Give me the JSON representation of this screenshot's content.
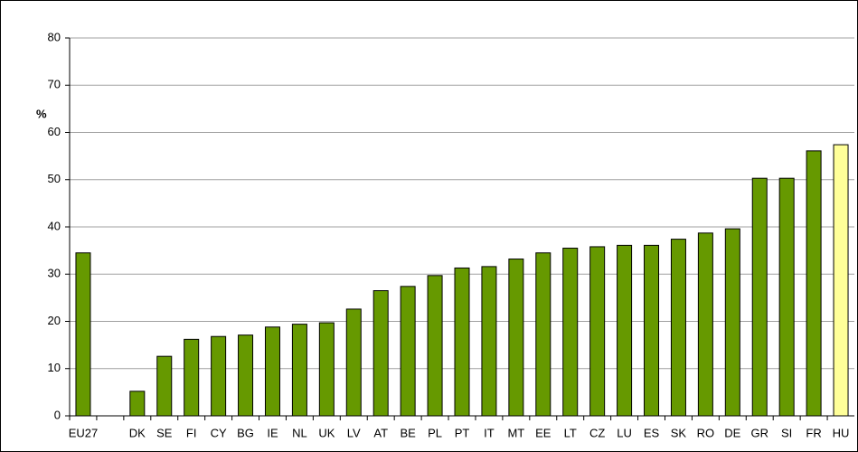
{
  "chart_data": {
    "type": "bar",
    "ylabel": "%",
    "categories": [
      "EU27",
      null,
      "DK",
      "SE",
      "FI",
      "CY",
      "BG",
      "IE",
      "NL",
      "UK",
      "LV",
      "AT",
      "BE",
      "PL",
      "PT",
      "IT",
      "MT",
      "EE",
      "LT",
      "CZ",
      "LU",
      "ES",
      "SK",
      "RO",
      "DE",
      "GR",
      "SI",
      "FR",
      "HU"
    ],
    "values": [
      34.5,
      null,
      5.2,
      12.6,
      16.2,
      16.8,
      17.1,
      18.8,
      19.4,
      19.7,
      22.6,
      26.5,
      27.4,
      29.7,
      31.3,
      31.6,
      33.2,
      34.5,
      35.5,
      35.8,
      36.1,
      36.1,
      37.4,
      38.7,
      39.6,
      50.3,
      50.3,
      56.1,
      57.4
    ],
    "colors": [
      "#669900",
      null,
      "#669900",
      "#669900",
      "#669900",
      "#669900",
      "#669900",
      "#669900",
      "#669900",
      "#669900",
      "#669900",
      "#669900",
      "#669900",
      "#669900",
      "#669900",
      "#669900",
      "#669900",
      "#669900",
      "#669900",
      "#669900",
      "#669900",
      "#669900",
      "#669900",
      "#669900",
      "#669900",
      "#669900",
      "#669900",
      "#669900",
      "#ffff99"
    ],
    "ylim": [
      0,
      80
    ],
    "yticks": [
      0,
      10,
      20,
      30,
      40,
      50,
      60,
      70,
      80
    ],
    "grid": true
  }
}
